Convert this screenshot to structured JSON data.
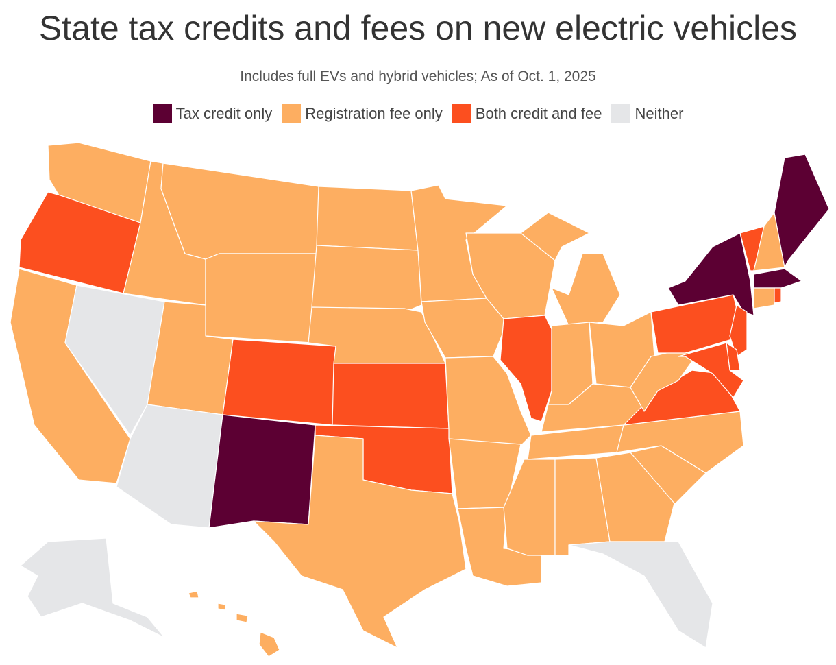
{
  "header": {
    "title": "State tax credits and fees on new electric vehicles",
    "subtitle": "Includes full EVs and hybrid vehicles; As of Oct. 1, 2025"
  },
  "legend": [
    {
      "label": "Tax credit only",
      "color": "#5c0033"
    },
    {
      "label": "Registration fee only",
      "color": "#fdae61"
    },
    {
      "label": "Both credit and fee",
      "color": "#fc4f1f"
    },
    {
      "label": "Neither",
      "color": "#e5e6e8"
    }
  ]
}
